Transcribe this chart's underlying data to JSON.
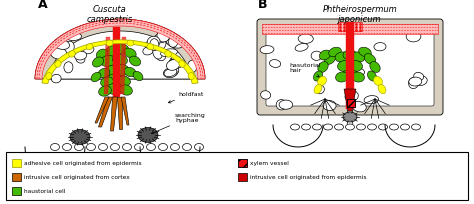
{
  "title_A": "Cuscuta\ncampestris",
  "title_B": "Phtheirospermum\njaponicum",
  "label_A": "A",
  "label_B": "B",
  "annotation_holdfast": "holdfast",
  "annotation_hyphae": "searching\nhyphae",
  "annotation_hair": "hasutorial\nhair",
  "bg_color": "#ffffff",
  "fig_width": 4.74,
  "fig_height": 2.05,
  "dpi": 100,
  "C_YELLOW": "#ffff00",
  "C_ORANGE": "#cc6600",
  "C_GREEN": "#44bb00",
  "C_RED": "#ee1111",
  "C_DARKRED": "#cc0000",
  "C_PINK": "#ffbbbb",
  "C_BLACK": "#000000",
  "C_WHITE": "#ffffff",
  "C_STONE": "#d8d0c0",
  "C_LGRAY": "#aaaaaa"
}
